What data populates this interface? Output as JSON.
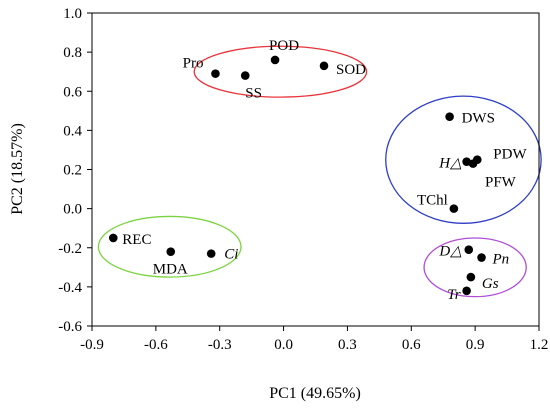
{
  "chart_data": {
    "type": "scatter",
    "xlabel": "PC1 (49.65%)",
    "ylabel": "PC2 (18.57%)",
    "xlim": [
      -0.9,
      1.2
    ],
    "ylim": [
      -0.6,
      1.0
    ],
    "xticks": [
      "-0.9",
      "-0.6",
      "-0.3",
      "0.0",
      "0.3",
      "0.6",
      "0.9",
      "1.2"
    ],
    "yticks": [
      "-0.6",
      "-0.4",
      "-0.2",
      "0.0",
      "0.2",
      "0.4",
      "0.6",
      "0.8",
      "1.0"
    ],
    "points": [
      {
        "label": "Pro",
        "x": -0.32,
        "y": 0.69,
        "italic": false
      },
      {
        "label": "POD",
        "x": -0.04,
        "y": 0.76,
        "italic": false
      },
      {
        "label": "SS",
        "x": -0.18,
        "y": 0.68,
        "italic": false
      },
      {
        "label": "SOD",
        "x": 0.19,
        "y": 0.73,
        "italic": false
      },
      {
        "label": "DWS",
        "x": 0.78,
        "y": 0.47,
        "italic": false
      },
      {
        "label": "H△",
        "x": 0.86,
        "y": 0.24,
        "italic": true
      },
      {
        "label": "PDW",
        "x": 0.91,
        "y": 0.25,
        "italic": false
      },
      {
        "label": "PFW",
        "x": 0.89,
        "y": 0.23,
        "italic": false
      },
      {
        "label": "TChl",
        "x": 0.8,
        "y": 0.0,
        "italic": false
      },
      {
        "label": "REC",
        "x": -0.8,
        "y": -0.15,
        "italic": false
      },
      {
        "label": "MDA",
        "x": -0.53,
        "y": -0.22,
        "italic": false
      },
      {
        "label": "Ci",
        "x": -0.34,
        "y": -0.23,
        "italic": true
      },
      {
        "label": "D△",
        "x": 0.87,
        "y": -0.21,
        "italic": true
      },
      {
        "label": "Pn",
        "x": 0.93,
        "y": -0.25,
        "italic": true
      },
      {
        "label": "Gs",
        "x": 0.88,
        "y": -0.35,
        "italic": true
      },
      {
        "label": "Tr",
        "x": 0.86,
        "y": -0.42,
        "italic": true
      }
    ],
    "groups": [
      {
        "color": "#e8343a",
        "cx": -0.015,
        "cy": 0.7,
        "rx": 0.405,
        "ry": 0.13
      },
      {
        "color": "#2f3ec8",
        "cx": 0.845,
        "cy": 0.25,
        "rx": 0.365,
        "ry": 0.325
      },
      {
        "color": "#7bd33f",
        "cx": -0.535,
        "cy": -0.195,
        "rx": 0.335,
        "ry": 0.155
      },
      {
        "color": "#b04ed6",
        "cx": 0.9,
        "cy": -0.3,
        "rx": 0.24,
        "ry": 0.15
      }
    ],
    "grid": false,
    "legend": "none"
  }
}
